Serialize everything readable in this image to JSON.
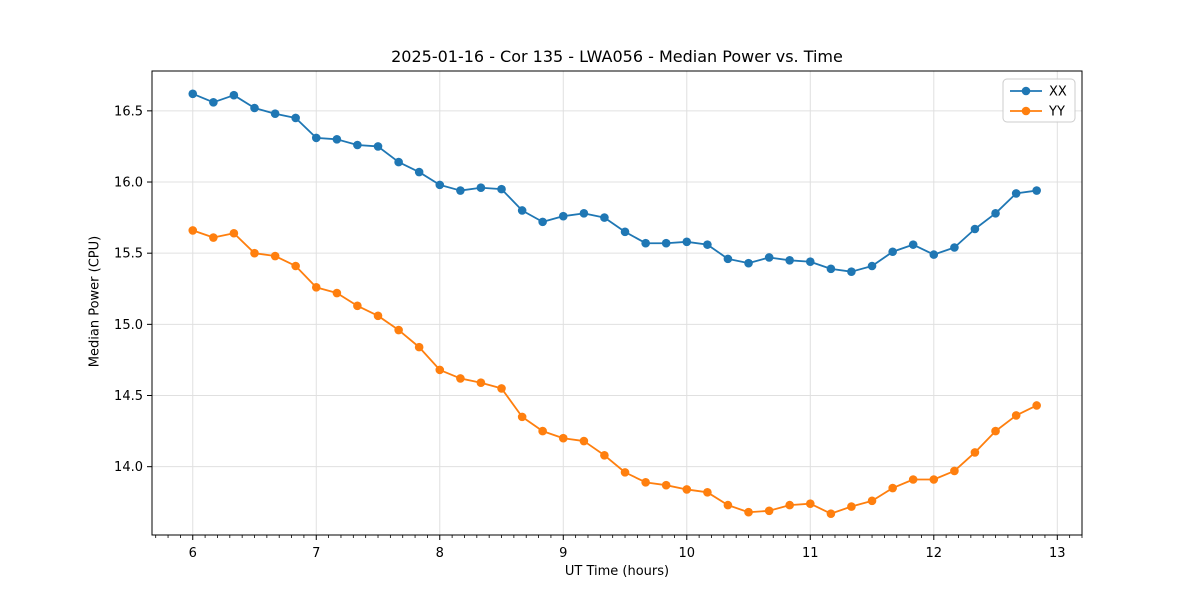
{
  "chart_data": {
    "type": "line",
    "title": "2025-01-16 - Cor 135 - LWA056 - Median Power vs. Time",
    "xlabel": "UT Time (hours)",
    "ylabel": "Median Power (CPU)",
    "xlim": [
      5.67,
      13.2
    ],
    "ylim": [
      13.52,
      16.78
    ],
    "xticks": [
      6,
      7,
      8,
      9,
      10,
      11,
      12,
      13
    ],
    "xtick_labels": [
      "6",
      "7",
      "8",
      "9",
      "10",
      "11",
      "12",
      "13"
    ],
    "x_minor_tick_step": 0.1,
    "yticks": [
      14.0,
      14.5,
      15.0,
      15.5,
      16.0,
      16.5
    ],
    "ytick_labels": [
      "14.0",
      "14.5",
      "15.0",
      "15.5",
      "16.0",
      "16.5"
    ],
    "grid": true,
    "legend_position": "upper right",
    "x": [
      6.0,
      6.167,
      6.333,
      6.5,
      6.667,
      6.833,
      7.0,
      7.167,
      7.333,
      7.5,
      7.667,
      7.833,
      8.0,
      8.167,
      8.333,
      8.5,
      8.667,
      8.833,
      9.0,
      9.167,
      9.333,
      9.5,
      9.667,
      9.833,
      10.0,
      10.167,
      10.333,
      10.5,
      10.667,
      10.833,
      11.0,
      11.167,
      11.333,
      11.5,
      11.667,
      11.833,
      12.0,
      12.167,
      12.333,
      12.5,
      12.667,
      12.833
    ],
    "series": [
      {
        "name": "XX",
        "color": "#1f77b4",
        "values": [
          16.62,
          16.56,
          16.61,
          16.52,
          16.48,
          16.45,
          16.31,
          16.3,
          16.26,
          16.25,
          16.14,
          16.07,
          15.98,
          15.94,
          15.96,
          15.95,
          15.8,
          15.72,
          15.76,
          15.78,
          15.75,
          15.65,
          15.57,
          15.57,
          15.58,
          15.56,
          15.46,
          15.43,
          15.47,
          15.45,
          15.44,
          15.39,
          15.37,
          15.41,
          15.51,
          15.56,
          15.49,
          15.54,
          15.67,
          15.78,
          15.92,
          15.94
        ]
      },
      {
        "name": "YY",
        "color": "#ff7f0e",
        "values": [
          15.66,
          15.61,
          15.64,
          15.5,
          15.48,
          15.41,
          15.26,
          15.22,
          15.13,
          15.06,
          14.96,
          14.84,
          14.68,
          14.62,
          14.59,
          14.55,
          14.35,
          14.25,
          14.2,
          14.18,
          14.08,
          13.96,
          13.89,
          13.87,
          13.84,
          13.82,
          13.73,
          13.68,
          13.69,
          13.73,
          13.74,
          13.67,
          13.72,
          13.76,
          13.85,
          13.91,
          13.91,
          13.97,
          14.1,
          14.25,
          14.36,
          14.43
        ]
      }
    ]
  },
  "colors": {
    "background": "#ffffff",
    "grid": "#e0e0e0",
    "spine": "#000000",
    "tick": "#000000",
    "legend_border": "#cccccc",
    "legend_background": "#ffffff"
  }
}
